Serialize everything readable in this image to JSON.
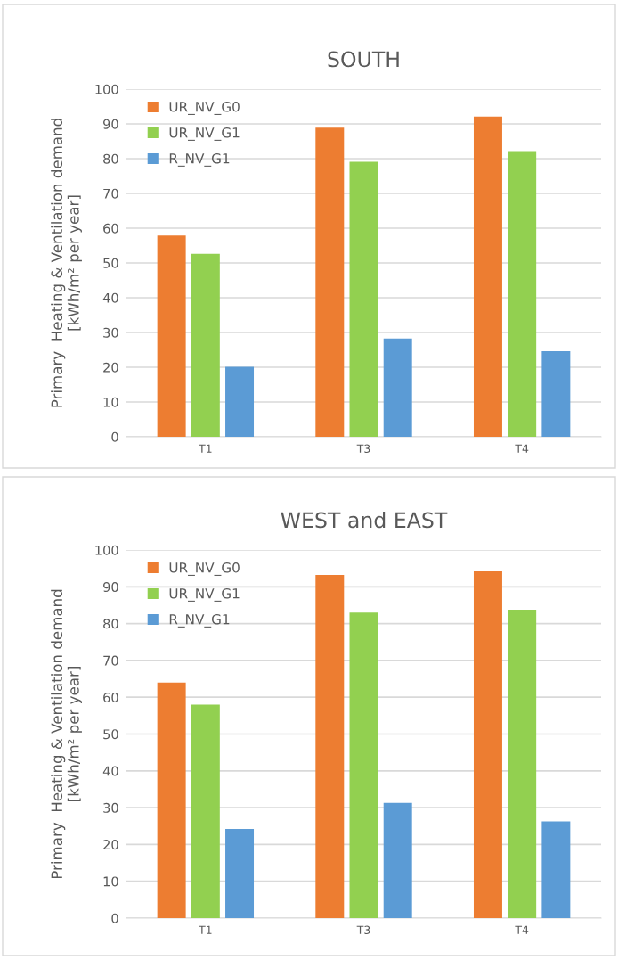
{
  "chart_data": [
    {
      "type": "bar",
      "title": "SOUTH",
      "ylabel": "Primary  Heating & Ventilation demand\n[kWh/m² per year]",
      "categories": [
        "T1",
        "T3",
        "T4"
      ],
      "series": [
        {
          "name": "UR_NV_G0",
          "color": "#ed7d31",
          "values": [
            57.9,
            88.9,
            92.1
          ]
        },
        {
          "name": "UR_NV_G1",
          "color": "#92d050",
          "values": [
            52.6,
            79.1,
            82.2
          ]
        },
        {
          "name": "R_NV_G1",
          "color": "#5b9bd5",
          "values": [
            20.1,
            28.3,
            24.6
          ]
        }
      ],
      "ylim": [
        0,
        100
      ],
      "yticks": [
        0,
        10,
        20,
        30,
        40,
        50,
        60,
        70,
        80,
        90,
        100
      ],
      "grid": "y",
      "legend": "top left"
    },
    {
      "type": "bar",
      "title": "WEST and EAST",
      "ylabel": "Primary  Heating & Ventilation demand\n[kWh/m² per year]",
      "categories": [
        "T1",
        "T3",
        "T4"
      ],
      "series": [
        {
          "name": "UR_NV_G0",
          "color": "#ed7d31",
          "values": [
            64.0,
            93.2,
            94.2
          ]
        },
        {
          "name": "UR_NV_G1",
          "color": "#92d050",
          "values": [
            58.0,
            83.0,
            83.8
          ]
        },
        {
          "name": "R_NV_G1",
          "color": "#5b9bd5",
          "values": [
            24.2,
            31.3,
            26.3
          ]
        }
      ],
      "ylim": [
        0,
        100
      ],
      "yticks": [
        0,
        10,
        20,
        30,
        40,
        50,
        60,
        70,
        80,
        90,
        100
      ],
      "grid": "y",
      "legend": "top left"
    }
  ]
}
